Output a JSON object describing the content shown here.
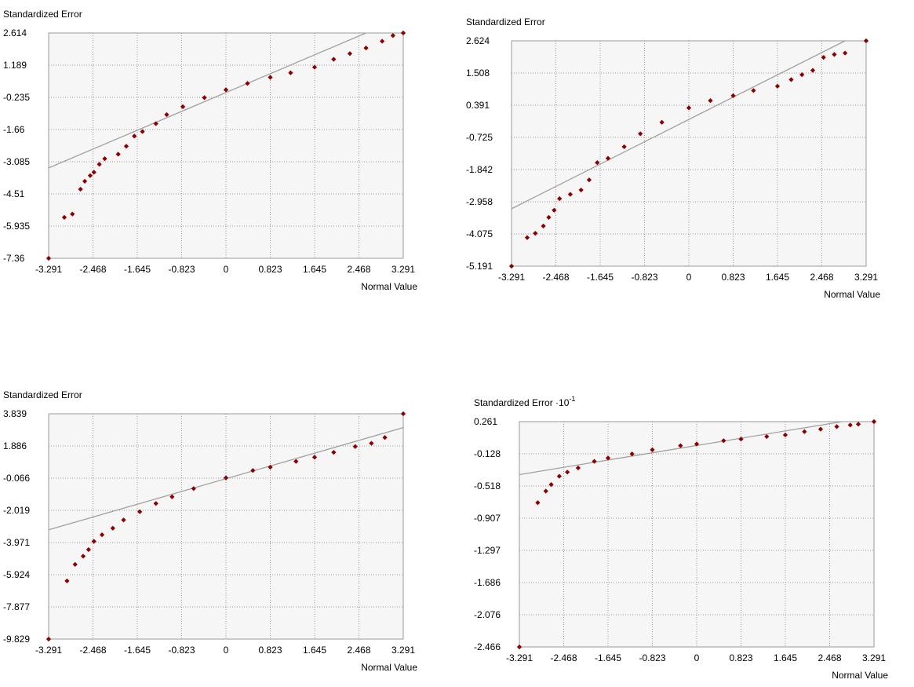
{
  "colors": {
    "plot_bg": "#f6f6f6",
    "grid": "#9a9a9a",
    "frame": "#9a9a9a",
    "ref_line": "#a0a0a0",
    "points": "#8b0000"
  },
  "chart_data": [
    {
      "type": "scatter",
      "ylabel": "Standardized Error",
      "ylabel_exp": "",
      "xlabel": "Normal Value",
      "xticks": [
        "-3.291",
        "-2.468",
        "-1.645",
        "-0.823",
        "0",
        "0.823",
        "1.645",
        "2.468",
        "3.291"
      ],
      "yticks": [
        "2.614",
        "1.189",
        "-0.235",
        "-1.66",
        "-3.085",
        "-4.51",
        "-5.935",
        "-7.36"
      ],
      "xlim": [
        -3.291,
        3.291
      ],
      "ylim": [
        -7.36,
        2.614
      ],
      "ref_line": [
        [
          -3.291,
          -3.36
        ],
        [
          2.6,
          2.614
        ]
      ],
      "points": [
        [
          -3.291,
          -7.36
        ],
        [
          -3.0,
          -5.55
        ],
        [
          -2.85,
          -5.4
        ],
        [
          -2.7,
          -4.3
        ],
        [
          -2.62,
          -3.95
        ],
        [
          -2.52,
          -3.7
        ],
        [
          -2.45,
          -3.55
        ],
        [
          -2.35,
          -3.2
        ],
        [
          -2.25,
          -2.95
        ],
        [
          -2.0,
          -2.75
        ],
        [
          -1.85,
          -2.4
        ],
        [
          -1.7,
          -1.95
        ],
        [
          -1.55,
          -1.75
        ],
        [
          -1.3,
          -1.4
        ],
        [
          -1.1,
          -1.0
        ],
        [
          -0.8,
          -0.65
        ],
        [
          -0.4,
          -0.25
        ],
        [
          0.0,
          0.1
        ],
        [
          0.4,
          0.38
        ],
        [
          0.823,
          0.65
        ],
        [
          1.2,
          0.85
        ],
        [
          1.645,
          1.1
        ],
        [
          2.0,
          1.45
        ],
        [
          2.3,
          1.7
        ],
        [
          2.6,
          1.95
        ],
        [
          2.9,
          2.25
        ],
        [
          3.1,
          2.5
        ],
        [
          3.291,
          2.614
        ]
      ]
    },
    {
      "type": "scatter",
      "ylabel": "Standardized Error",
      "ylabel_exp": "",
      "xlabel": "Normal Value",
      "xticks": [
        "-3.291",
        "-2.468",
        "-1.645",
        "-0.823",
        "0",
        "0.823",
        "1.645",
        "2.468",
        "3.291"
      ],
      "yticks": [
        "2.624",
        "1.508",
        "0.391",
        "-0.725",
        "-1.842",
        "-2.958",
        "-4.075",
        "-5.191"
      ],
      "xlim": [
        -3.291,
        3.291
      ],
      "ylim": [
        -5.191,
        2.624
      ],
      "ref_line": [
        [
          -3.291,
          -3.2
        ],
        [
          2.9,
          2.624
        ]
      ],
      "points": [
        [
          -3.291,
          -5.191
        ],
        [
          -3.0,
          -4.2
        ],
        [
          -2.85,
          -4.05
        ],
        [
          -2.7,
          -3.8
        ],
        [
          -2.6,
          -3.5
        ],
        [
          -2.5,
          -3.25
        ],
        [
          -2.4,
          -2.85
        ],
        [
          -2.2,
          -2.7
        ],
        [
          -2.0,
          -2.55
        ],
        [
          -1.85,
          -2.2
        ],
        [
          -1.7,
          -1.6
        ],
        [
          -1.5,
          -1.45
        ],
        [
          -1.2,
          -1.05
        ],
        [
          -0.9,
          -0.6
        ],
        [
          -0.5,
          -0.2
        ],
        [
          0.0,
          0.3
        ],
        [
          0.4,
          0.55
        ],
        [
          0.823,
          0.72
        ],
        [
          1.2,
          0.9
        ],
        [
          1.645,
          1.05
        ],
        [
          1.9,
          1.28
        ],
        [
          2.1,
          1.45
        ],
        [
          2.3,
          1.6
        ],
        [
          2.5,
          2.05
        ],
        [
          2.7,
          2.15
        ],
        [
          2.9,
          2.2
        ],
        [
          3.291,
          2.624
        ]
      ]
    },
    {
      "type": "scatter",
      "ylabel": "Standardized Error",
      "ylabel_exp": "",
      "xlabel": "Normal Value",
      "xticks": [
        "-3.291",
        "-2.468",
        "-1.645",
        "-0.823",
        "0",
        "0.823",
        "1.645",
        "2.468",
        "3.291"
      ],
      "yticks": [
        "3.839",
        "1.886",
        "-0.066",
        "-2.019",
        "-3.971",
        "-5.924",
        "-7.877",
        "-9.829"
      ],
      "xlim": [
        -3.291,
        3.291
      ],
      "ylim": [
        -9.829,
        3.839
      ],
      "ref_line": [
        [
          -3.291,
          -3.2
        ],
        [
          3.291,
          3.0
        ]
      ],
      "points": [
        [
          -3.291,
          -9.829
        ],
        [
          -2.95,
          -6.3
        ],
        [
          -2.8,
          -5.3
        ],
        [
          -2.65,
          -4.8
        ],
        [
          -2.55,
          -4.4
        ],
        [
          -2.45,
          -3.9
        ],
        [
          -2.3,
          -3.5
        ],
        [
          -2.1,
          -3.1
        ],
        [
          -1.9,
          -2.6
        ],
        [
          -1.6,
          -2.1
        ],
        [
          -1.3,
          -1.6
        ],
        [
          -1.0,
          -1.2
        ],
        [
          -0.6,
          -0.7
        ],
        [
          0.0,
          -0.05
        ],
        [
          0.5,
          0.4
        ],
        [
          0.823,
          0.6
        ],
        [
          1.3,
          0.95
        ],
        [
          1.645,
          1.2
        ],
        [
          2.0,
          1.5
        ],
        [
          2.4,
          1.85
        ],
        [
          2.7,
          2.05
        ],
        [
          2.95,
          2.4
        ],
        [
          3.291,
          3.839
        ]
      ]
    },
    {
      "type": "scatter",
      "ylabel": "Standardized Error ·10",
      "ylabel_exp": "-1",
      "xlabel": "Normal Value",
      "xticks": [
        "-3.291",
        "-2.468",
        "-1.645",
        "-0.823",
        "0",
        "0.823",
        "1.645",
        "2.468",
        "3.291"
      ],
      "yticks": [
        "0.261",
        "-0.128",
        "-0.518",
        "-0.907",
        "-1.297",
        "-1.686",
        "-2.076",
        "-2.466"
      ],
      "xlim": [
        -3.291,
        3.291
      ],
      "ylim": [
        -2.466,
        0.261
      ],
      "ref_line": [
        [
          -3.291,
          -0.38
        ],
        [
          2.7,
          0.261
        ]
      ],
      "points": [
        [
          -3.291,
          -2.466
        ],
        [
          -2.95,
          -0.72
        ],
        [
          -2.8,
          -0.58
        ],
        [
          -2.7,
          -0.5
        ],
        [
          -2.55,
          -0.4
        ],
        [
          -2.4,
          -0.35
        ],
        [
          -2.2,
          -0.3
        ],
        [
          -1.9,
          -0.22
        ],
        [
          -1.645,
          -0.18
        ],
        [
          -1.2,
          -0.13
        ],
        [
          -0.823,
          -0.08
        ],
        [
          -0.3,
          -0.03
        ],
        [
          0.0,
          -0.01
        ],
        [
          0.5,
          0.03
        ],
        [
          0.823,
          0.05
        ],
        [
          1.3,
          0.08
        ],
        [
          1.645,
          0.1
        ],
        [
          2.0,
          0.14
        ],
        [
          2.3,
          0.17
        ],
        [
          2.6,
          0.2
        ],
        [
          2.85,
          0.22
        ],
        [
          3.0,
          0.23
        ],
        [
          3.291,
          0.261
        ]
      ]
    }
  ]
}
